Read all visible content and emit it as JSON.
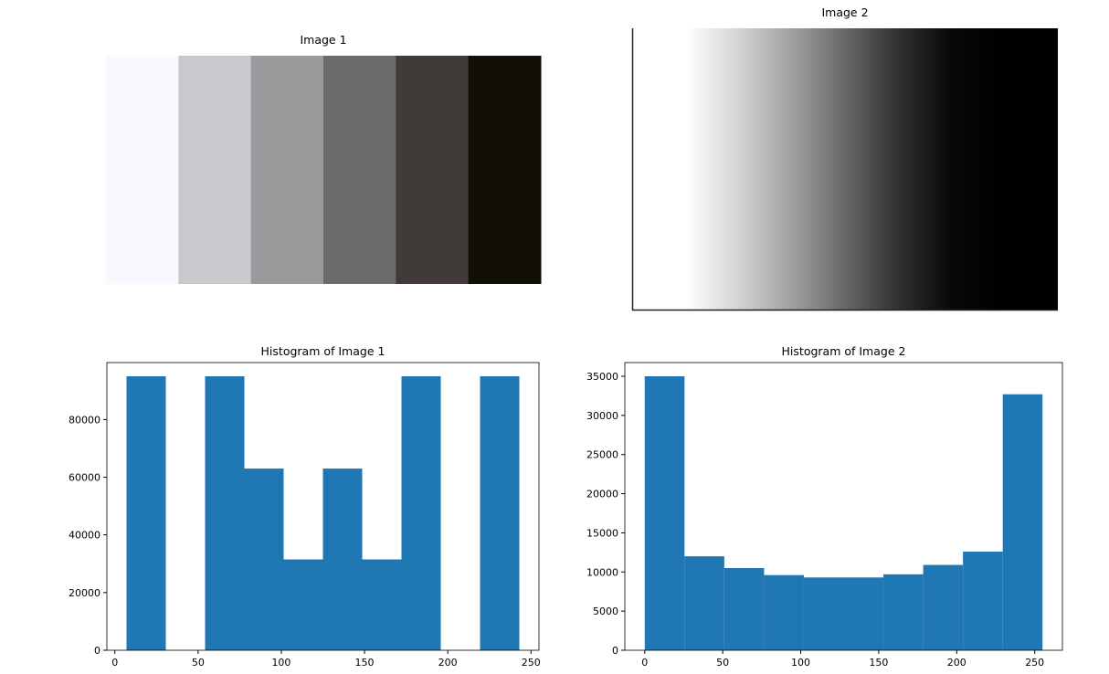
{
  "chart_data": [
    {
      "type": "image",
      "title": "Image 1",
      "colors": [
        "#f8f8ff",
        "#c8c8cd",
        "#9a9a9c",
        "#6c6b69",
        "#403b38",
        "#120e08"
      ]
    },
    {
      "type": "gradient",
      "title": "Image 2",
      "colors": [
        "#ffffff",
        "#ffffff",
        "#d4d4d4",
        "#a0a0a0",
        "#686868",
        "#303030",
        "#080808",
        "#000000",
        "#000000"
      ]
    },
    {
      "type": "histogram",
      "title": "Histogram of Image 1",
      "color": "#1f77b4",
      "bins": [
        7,
        30.6,
        54.2,
        77.8,
        101.4,
        125,
        148.6,
        172.2,
        195.8,
        219.4,
        243
      ],
      "values": [
        95000,
        0,
        95000,
        63000,
        31500,
        63000,
        31500,
        95000,
        0,
        95000
      ],
      "xlim": [
        -4.8,
        254.8
      ],
      "xticks": [
        0,
        50,
        100,
        150,
        200,
        250
      ],
      "ylim": [
        0,
        99750
      ],
      "yticks": [
        0,
        20000,
        40000,
        60000,
        80000
      ]
    },
    {
      "type": "histogram",
      "title": "Histogram of Image 2",
      "color": "#1f77b4",
      "bins": [
        0,
        25.5,
        51,
        76.5,
        102,
        127.5,
        153,
        178.5,
        204,
        229.5,
        255
      ],
      "values": [
        35000,
        12000,
        10500,
        9600,
        9300,
        9300,
        9700,
        10900,
        12600,
        32700
      ],
      "xlim": [
        -12.75,
        267.75
      ],
      "xticks": [
        0,
        50,
        100,
        150,
        200,
        250
      ],
      "ylim": [
        0,
        36750
      ],
      "yticks": [
        0,
        5000,
        10000,
        15000,
        20000,
        25000,
        30000,
        35000
      ]
    }
  ]
}
